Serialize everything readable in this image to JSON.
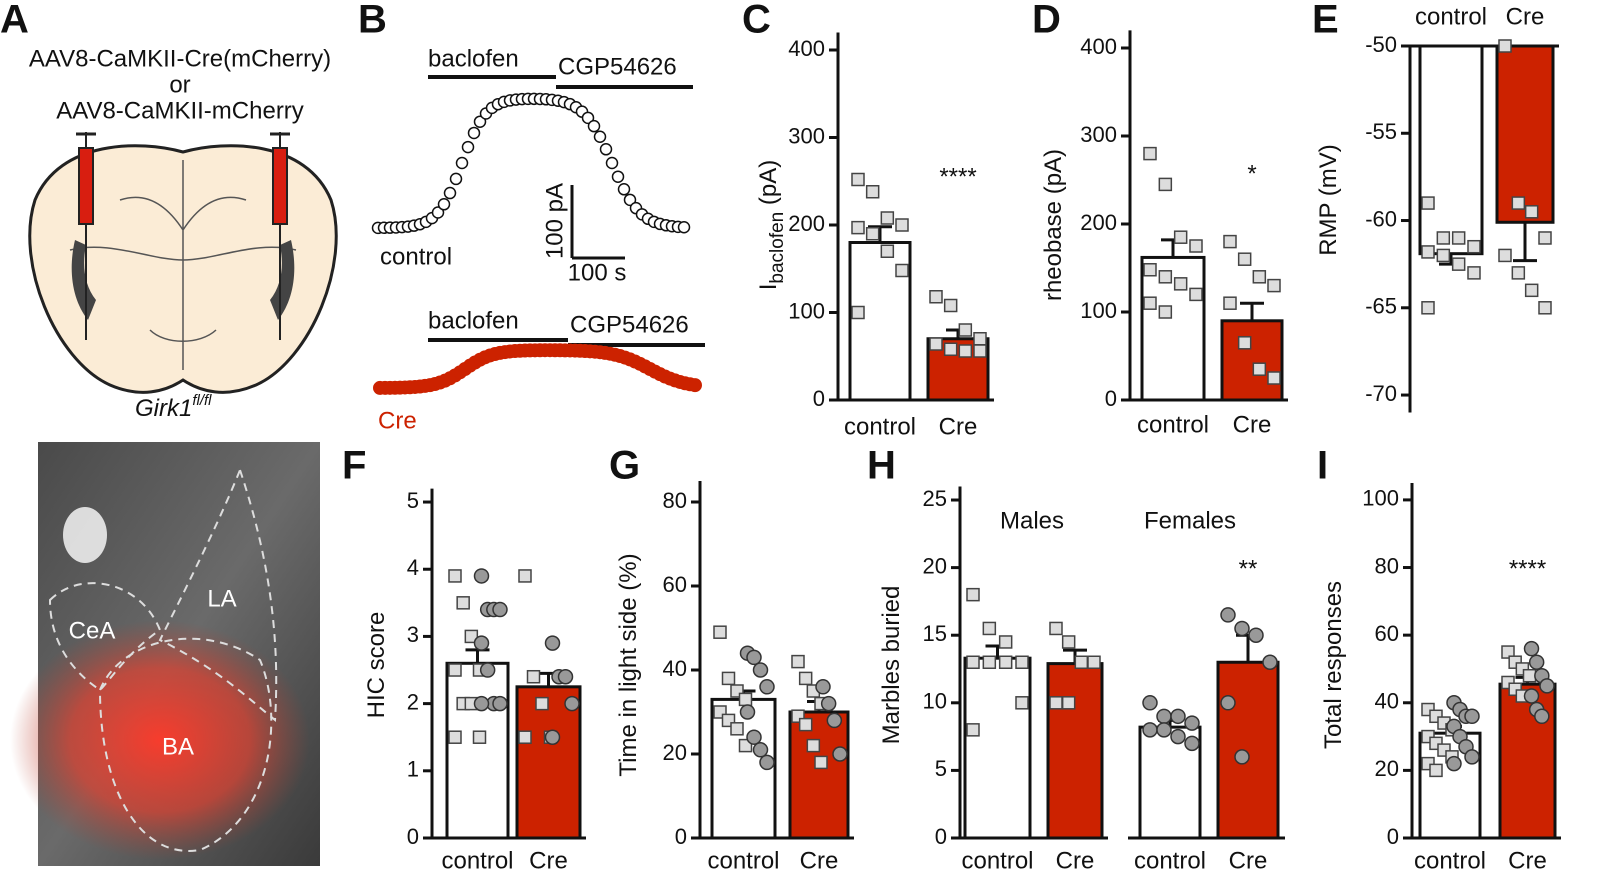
{
  "panel_a": {
    "letter": "A",
    "vector_lines": [
      "AAV8-CaMKII-Cre(mCherry)",
      "or",
      "AAV8-CaMKII-mCherry"
    ],
    "mouse_line": "Girk1",
    "mouse_line_sup": "fl/fl",
    "image_labels": [
      "LA",
      "CeA",
      "BA"
    ]
  },
  "panel_b": {
    "letter": "B",
    "control": {
      "drugs": [
        "baclofen",
        "CGP54626"
      ],
      "label": "control"
    },
    "scale_bar": {
      "vertical": "100 pA",
      "horizontal": "100 s"
    },
    "cre": {
      "drugs": [
        "baclofen",
        "CGP54626"
      ],
      "label": "Cre"
    }
  },
  "chart_data": [
    {
      "type": "bar",
      "panel": "C",
      "ylabel": "I",
      "ylabel_sub": "baclofen",
      "ylabel_unit": " (pA)",
      "categories": [
        "control",
        "Cre"
      ],
      "values": [
        180,
        70
      ],
      "errors": [
        18,
        10
      ],
      "colors": [
        "#ffffff",
        "#cc2200"
      ],
      "ylim": [
        0,
        420
      ],
      "yticks": [
        0,
        100,
        200,
        300,
        400
      ],
      "squares": [
        [
          252,
          238,
          208,
          200,
          197,
          190,
          170,
          148,
          100
        ],
        [
          118,
          108,
          80,
          70,
          64,
          58,
          56,
          56
        ]
      ],
      "circles": [
        [],
        []
      ],
      "significance": [
        null,
        "****"
      ]
    },
    {
      "type": "bar",
      "panel": "D",
      "ylabel": "rheobase (pA)",
      "categories": [
        "control",
        "Cre"
      ],
      "values": [
        162,
        90
      ],
      "errors": [
        20,
        20
      ],
      "colors": [
        "#ffffff",
        "#cc2200"
      ],
      "ylim": [
        0,
        420
      ],
      "yticks": [
        0,
        100,
        200,
        300,
        400
      ],
      "squares": [
        [
          280,
          245,
          185,
          175,
          148,
          140,
          132,
          120,
          110,
          100
        ],
        [
          180,
          160,
          140,
          130,
          110,
          65,
          35,
          25
        ]
      ],
      "circles": [
        [],
        []
      ],
      "significance": [
        null,
        "*"
      ]
    },
    {
      "type": "bar",
      "panel": "E",
      "ylabel": "RMP (mV)",
      "categories": [
        "control",
        "Cre"
      ],
      "values": [
        -61.9,
        -60.1
      ],
      "errors": [
        0.6,
        2.2
      ],
      "colors": [
        "#ffffff",
        "#cc2200"
      ],
      "ylim": [
        -71,
        -50
      ],
      "yticks": [
        -50,
        -55,
        -60,
        -65,
        -70
      ],
      "squares": [
        [
          -59,
          -61,
          -61,
          -61.5,
          -61.8,
          -62,
          -62.5,
          -63,
          -65
        ],
        [
          -50,
          -59,
          -59.5,
          -61,
          -62,
          -63,
          -64,
          -65
        ]
      ],
      "circles": [
        [],
        []
      ],
      "significance": [
        null,
        null
      ]
    },
    {
      "type": "bar",
      "panel": "F",
      "ylabel": "HIC score",
      "categories": [
        "control",
        "Cre"
      ],
      "values": [
        2.6,
        2.25
      ],
      "errors": [
        0.2,
        0.2
      ],
      "colors": [
        "#ffffff",
        "#cc2200"
      ],
      "ylim": [
        0,
        5.2
      ],
      "yticks": [
        0,
        1,
        2,
        3,
        4,
        5
      ],
      "squares": [
        [
          3.9,
          3.5,
          3,
          2.5,
          2.5,
          2,
          2,
          1.5,
          1.5
        ],
        [
          3.9,
          2.4,
          2,
          1.5,
          1.5
        ]
      ],
      "circles": [
        [
          3.9,
          3.4,
          3.4,
          3.4,
          2.9,
          2.5,
          2,
          2,
          2
        ],
        [
          2.9,
          2.4,
          2.4,
          2,
          1.5
        ]
      ],
      "significance": [
        null,
        null
      ]
    },
    {
      "type": "bar",
      "panel": "G",
      "ylabel": "Time in light side (%)",
      "categories": [
        "control",
        "Cre"
      ],
      "values": [
        33,
        30
      ],
      "errors": [
        2,
        2.5
      ],
      "colors": [
        "#ffffff",
        "#cc2200"
      ],
      "ylim": [
        0,
        85
      ],
      "yticks": [
        0,
        20,
        40,
        60,
        80
      ],
      "squares": [
        [
          49,
          38,
          35,
          33,
          30,
          28,
          26,
          22
        ],
        [
          42,
          38,
          35,
          32,
          29,
          27,
          22,
          18
        ]
      ],
      "circles": [
        [
          44,
          43,
          40,
          36,
          30,
          24,
          21,
          18
        ],
        [
          36,
          32,
          28,
          20
        ]
      ],
      "significance": [
        null,
        null
      ]
    },
    {
      "type": "bar",
      "panel": "H",
      "ylabel": "Marbles buried",
      "groups": [
        "Males",
        "Females"
      ],
      "categories": [
        "control",
        "Cre",
        "control",
        "Cre"
      ],
      "values": [
        13.3,
        12.9,
        8.2,
        13.0
      ],
      "errors": [
        0.9,
        1.0,
        0.5,
        2.0
      ],
      "colors": [
        "#ffffff",
        "#cc2200",
        "#ffffff",
        "#cc2200"
      ],
      "ylim": [
        0,
        26
      ],
      "yticks": [
        0,
        5,
        10,
        15,
        20,
        25
      ],
      "squares": [
        [
          18,
          15.5,
          14.5,
          13,
          13,
          13,
          13,
          10,
          8
        ],
        [
          15.5,
          14.5,
          13,
          13,
          10,
          10
        ],
        [],
        []
      ],
      "circles": [
        [],
        [],
        [
          10,
          9,
          9,
          8.5,
          8,
          8,
          7.5,
          7
        ],
        [
          16.5,
          15.5,
          15,
          13,
          10,
          6
        ]
      ],
      "significance": [
        null,
        null,
        null,
        "**"
      ]
    },
    {
      "type": "bar",
      "panel": "I",
      "ylabel": "Total responses",
      "categories": [
        "control",
        "Cre"
      ],
      "values": [
        31,
        45.5
      ],
      "errors": [
        2,
        2
      ],
      "colors": [
        "#ffffff",
        "#cc2200"
      ],
      "ylim": [
        0,
        105
      ],
      "yticks": [
        0,
        20,
        40,
        60,
        80,
        100
      ],
      "squares": [
        [
          38,
          36,
          34,
          32,
          30,
          28,
          26,
          24,
          22,
          20
        ],
        [
          55,
          52,
          50,
          48,
          46,
          44,
          42
        ]
      ],
      "circles": [
        [
          40,
          38,
          36,
          36,
          33,
          30,
          27,
          24,
          22
        ],
        [
          56,
          52,
          48,
          45,
          42,
          38,
          36
        ]
      ],
      "significance": [
        null,
        "****"
      ]
    }
  ]
}
